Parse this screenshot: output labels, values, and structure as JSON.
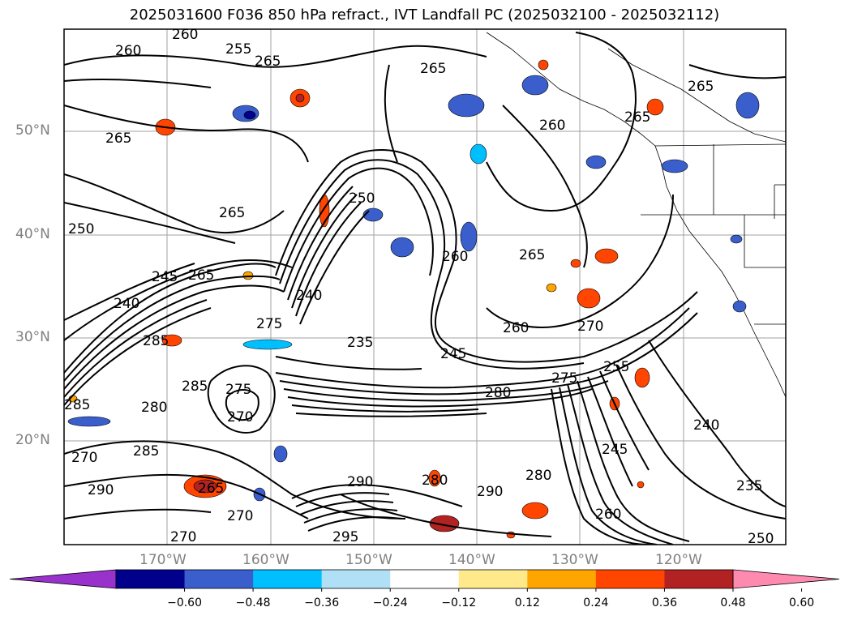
{
  "title": "2025031600 F036 850 hPa refract., IVT Landfall PC (2025032100 - 2025032112)",
  "lat_labels": [
    "50°N",
    "40°N",
    "30°N",
    "20°N"
  ],
  "lon_labels": [
    "170°W",
    "160°W",
    "150°W",
    "140°W",
    "130°W",
    "120°W"
  ],
  "contour_labels": [
    "260",
    "260",
    "255",
    "265",
    "265",
    "265",
    "265",
    "265",
    "265",
    "260",
    "265",
    "260",
    "265",
    "250",
    "250",
    "240",
    "245",
    "240",
    "275",
    "235",
    "245",
    "285",
    "285",
    "280",
    "275",
    "270",
    "260",
    "270",
    "255",
    "240",
    "245",
    "235",
    "285",
    "280",
    "270",
    "290",
    "265",
    "275",
    "290",
    "285",
    "290",
    "260",
    "280",
    "250",
    "295",
    "270",
    "270",
    "280"
  ],
  "colorbar": {
    "ticks": [
      "−0.60",
      "−0.48",
      "−0.36",
      "−0.24",
      "−0.12",
      "0.12",
      "0.24",
      "0.36",
      "0.48",
      "0.60"
    ],
    "colors": [
      "#9932cc",
      "#00008b",
      "#3a5fcd",
      "#00bfff",
      "#b0e0f6",
      "#ffffff",
      "#ffe98a",
      "#ffa500",
      "#ff4500",
      "#b22222",
      "#ff8ab0"
    ]
  }
}
